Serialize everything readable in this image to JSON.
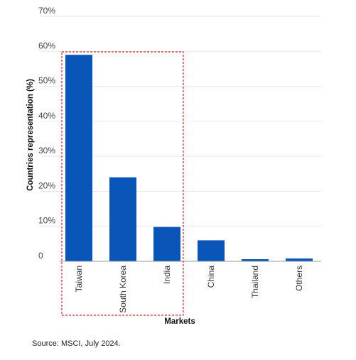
{
  "chart_data": {
    "type": "bar",
    "categories": [
      "Taiwan",
      "South Korea",
      "India",
      "China",
      "Thailand",
      "Others"
    ],
    "values": [
      59,
      24,
      9.8,
      6,
      0.6,
      0.8
    ],
    "xlabel": "Markets",
    "ylabel": "Countries representation (%)",
    "ylim": [
      0,
      70
    ],
    "yticks": [
      "0",
      "10%",
      "20%",
      "30%",
      "40%",
      "50%",
      "60%",
      "70%"
    ],
    "grid": true,
    "bar_color": "#0a56b8",
    "highlight_color": "#e0282e",
    "highlighted_categories": [
      "Taiwan",
      "South Korea",
      "India"
    ]
  },
  "footer": {
    "source": "Source: MSCI, July 2024."
  }
}
